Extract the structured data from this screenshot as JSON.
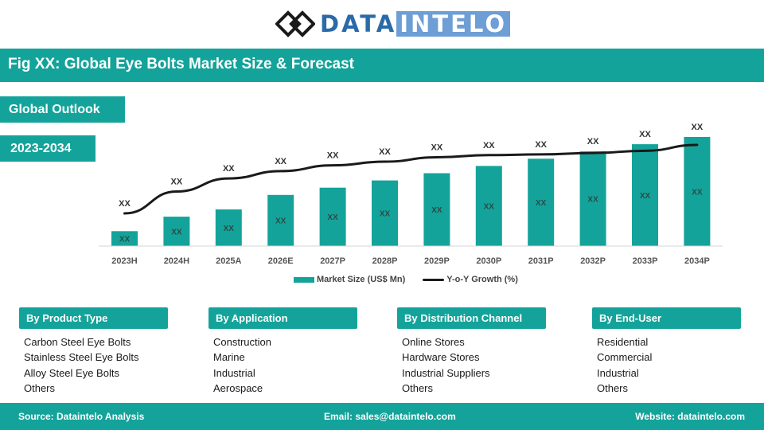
{
  "brand": {
    "part1": "DATA",
    "part2": "INTELO",
    "logo_icon": "diamond-knot-icon",
    "colors": {
      "primary": "#2a6aa8",
      "secondary": "#6d9ed6"
    }
  },
  "header": {
    "title": "Fig XX: Global Eye Bolts Market Size & Forecast"
  },
  "tags": {
    "outlook": "Global Outlook",
    "period": "2023-2034"
  },
  "theme": {
    "accent": "#14a39a",
    "line": "#1a1a1a"
  },
  "chart_data": {
    "type": "bar",
    "title": "",
    "xlabel": "",
    "ylabel": "",
    "categories": [
      "2023H",
      "2024H",
      "2025A",
      "2026E",
      "2027P",
      "2028P",
      "2029P",
      "2030P",
      "2031P",
      "2032P",
      "2033P",
      "2034P"
    ],
    "series": [
      {
        "name": "Market Size (US$ Mn)",
        "type": "bar",
        "values": [
          10,
          20,
          25,
          35,
          40,
          45,
          50,
          55,
          60,
          65,
          70,
          75
        ],
        "labels": [
          "XX",
          "XX",
          "XX",
          "XX",
          "XX",
          "XX",
          "XX",
          "XX",
          "XX",
          "XX",
          "XX",
          "XX"
        ]
      },
      {
        "name": "Y-o-Y Growth (%)",
        "type": "line",
        "values": [
          22,
          37,
          46,
          51,
          55,
          57.5,
          60.5,
          62,
          62.5,
          63.5,
          65,
          69
        ],
        "labels": [
          "XX",
          "XX",
          "XX",
          "XX",
          "XX",
          "XX",
          "XX",
          "XX",
          "XX",
          "XX",
          "XX",
          "XX"
        ]
      }
    ],
    "ylim": [
      0,
      75
    ],
    "grid": false,
    "legend": "bottom-center"
  },
  "segments": [
    {
      "title": "By Product Type",
      "items": [
        "Carbon Steel Eye Bolts",
        "Stainless Steel Eye Bolts",
        "Alloy Steel Eye Bolts",
        "Others"
      ]
    },
    {
      "title": "By Application",
      "items": [
        "Construction",
        "Marine",
        "Industrial",
        "Aerospace"
      ]
    },
    {
      "title": "By Distribution Channel",
      "items": [
        "Online Stores",
        "Hardware Stores",
        "Industrial Suppliers",
        "Others"
      ]
    },
    {
      "title": "By End-User",
      "items": [
        "Residential",
        "Commercial",
        "Industrial",
        "Others"
      ]
    }
  ],
  "footer": {
    "source": "Source: Dataintelo Analysis",
    "email": "Email: sales@dataintelo.com",
    "website": "Website: dataintelo.com"
  }
}
